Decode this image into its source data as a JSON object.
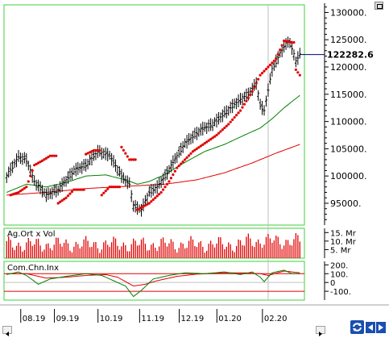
{
  "chart_data": [
    {
      "type": "candlestick",
      "name": "price",
      "y_ticks": [
        "130000.",
        "125000.",
        "120000.",
        "115000.",
        "110000.",
        "105000.",
        "100000.",
        "95000."
      ],
      "y_tick_values": [
        130000,
        125000,
        120000,
        115000,
        110000,
        105000,
        100000,
        95000
      ],
      "ylim": [
        91000,
        131400
      ],
      "last_price_label": "122282.6",
      "last_price": 122282.6,
      "x_labels": [
        "08.19",
        "09.19",
        "10.19",
        "11.19",
        "12.19",
        "01.20",
        "02.20"
      ],
      "n_bars": 150,
      "anchors": [
        [
          0,
          100000
        ],
        [
          6,
          103500
        ],
        [
          10,
          103000
        ],
        [
          14,
          99000
        ],
        [
          20,
          96500
        ],
        [
          26,
          97500
        ],
        [
          34,
          101000
        ],
        [
          40,
          102000
        ],
        [
          46,
          104500
        ],
        [
          52,
          103800
        ],
        [
          58,
          100000
        ],
        [
          62,
          98500
        ],
        [
          64,
          94500
        ],
        [
          68,
          93800
        ],
        [
          72,
          97000
        ],
        [
          76,
          98000
        ],
        [
          80,
          100000
        ],
        [
          84,
          102500
        ],
        [
          90,
          106000
        ],
        [
          98,
          108500
        ],
        [
          104,
          109500
        ],
        [
          110,
          111500
        ],
        [
          116,
          113500
        ],
        [
          122,
          115000
        ],
        [
          126,
          117000
        ],
        [
          128,
          113000
        ],
        [
          130,
          112000
        ],
        [
          134,
          119500
        ],
        [
          138,
          122500
        ],
        [
          142,
          124800
        ],
        [
          144,
          123500
        ],
        [
          146,
          121000
        ],
        [
          148,
          122282.6
        ]
      ],
      "parabolic_sar": [
        [
          2,
          96500
        ],
        [
          6,
          97000
        ],
        [
          10,
          98000
        ],
        [
          14,
          102000
        ],
        [
          18,
          102800
        ],
        [
          22,
          103700
        ],
        [
          26,
          95000
        ],
        [
          30,
          96000
        ],
        [
          34,
          97500
        ],
        [
          40,
          104000
        ],
        [
          44,
          104700
        ],
        [
          48,
          96500
        ],
        [
          52,
          98000
        ],
        [
          58,
          105300
        ],
        [
          62,
          103000
        ],
        [
          66,
          93800
        ],
        [
          72,
          95000
        ],
        [
          78,
          97000
        ],
        [
          82,
          99000
        ],
        [
          86,
          101500
        ],
        [
          90,
          103000
        ],
        [
          94,
          104500
        ],
        [
          100,
          106000
        ],
        [
          106,
          107500
        ],
        [
          112,
          109500
        ],
        [
          118,
          112000
        ],
        [
          124,
          115500
        ],
        [
          128,
          118500
        ],
        [
          132,
          120000
        ],
        [
          136,
          121500
        ],
        [
          140,
          124800
        ],
        [
          144,
          124500
        ],
        [
          146,
          119500
        ],
        [
          148,
          118500
        ]
      ],
      "moving_average_short": [
        [
          0,
          97000
        ],
        [
          10,
          98500
        ],
        [
          20,
          98000
        ],
        [
          30,
          98800
        ],
        [
          40,
          100000
        ],
        [
          50,
          100200
        ],
        [
          60,
          99300
        ],
        [
          66,
          98500
        ],
        [
          72,
          99000
        ],
        [
          80,
          100300
        ],
        [
          90,
          102500
        ],
        [
          100,
          104500
        ],
        [
          110,
          105800
        ],
        [
          120,
          107500
        ],
        [
          128,
          108800
        ],
        [
          134,
          110500
        ],
        [
          140,
          112500
        ],
        [
          148,
          114800
        ]
      ],
      "moving_average_long": [
        [
          0,
          96500
        ],
        [
          20,
          97000
        ],
        [
          40,
          97700
        ],
        [
          60,
          98100
        ],
        [
          80,
          98500
        ],
        [
          96,
          99300
        ],
        [
          110,
          100600
        ],
        [
          124,
          102400
        ],
        [
          136,
          104200
        ],
        [
          148,
          105800
        ]
      ],
      "vertical_gridline_bar": 132
    },
    {
      "type": "bar",
      "name": "volume",
      "title": "Ag.Ort x Vol",
      "y_ticks": [
        "15. Mr",
        "10. Mr",
        "5. Mr"
      ],
      "y_tick_values": [
        15,
        10,
        5
      ],
      "ylim": [
        0,
        17.5
      ],
      "base_level": 8,
      "amplitude": 5
    },
    {
      "type": "line",
      "name": "cci",
      "title": "Com.Chn.Inx",
      "y_ticks": [
        "200.",
        "100.",
        "0",
        "-100."
      ],
      "y_tick_values": [
        200,
        100,
        0,
        -100
      ],
      "reference_lines": [
        100,
        -100
      ],
      "ylim": [
        -200,
        240
      ],
      "cci": [
        [
          0,
          90
        ],
        [
          6,
          120
        ],
        [
          10,
          80
        ],
        [
          16,
          -20
        ],
        [
          22,
          40
        ],
        [
          30,
          70
        ],
        [
          40,
          100
        ],
        [
          48,
          80
        ],
        [
          54,
          20
        ],
        [
          60,
          -40
        ],
        [
          64,
          -160
        ],
        [
          68,
          -90
        ],
        [
          74,
          40
        ],
        [
          82,
          80
        ],
        [
          90,
          110
        ],
        [
          100,
          100
        ],
        [
          110,
          120
        ],
        [
          118,
          90
        ],
        [
          124,
          120
        ],
        [
          128,
          60
        ],
        [
          130,
          10
        ],
        [
          134,
          110
        ],
        [
          140,
          140
        ],
        [
          144,
          100
        ],
        [
          148,
          100
        ]
      ],
      "cci_signal": [
        [
          0,
          100
        ],
        [
          10,
          100
        ],
        [
          20,
          50
        ],
        [
          30,
          60
        ],
        [
          40,
          80
        ],
        [
          50,
          90
        ],
        [
          56,
          60
        ],
        [
          60,
          10
        ],
        [
          64,
          -40
        ],
        [
          70,
          -20
        ],
        [
          76,
          20
        ],
        [
          86,
          70
        ],
        [
          96,
          95
        ],
        [
          110,
          110
        ],
        [
          120,
          110
        ],
        [
          128,
          100
        ],
        [
          132,
          80
        ],
        [
          140,
          130
        ],
        [
          148,
          110
        ]
      ]
    }
  ],
  "colors": {
    "frame_green": "#3fcf3f",
    "candle": "#000000",
    "sar": "#e00000",
    "ma_short": "#008000",
    "ma_long": "#e00000",
    "last_price_line": "#000080",
    "volume_bar": "#e00000",
    "cci_line": "#008000",
    "cci_signal": "#e00000",
    "cci_ref": "#e00000"
  },
  "controls": {
    "refresh_icon": "refresh-icon",
    "nav_left_icon": "left-arrow-icon",
    "nav_right_icon": "right-arrow-icon",
    "corner_icon": "square-icon"
  }
}
